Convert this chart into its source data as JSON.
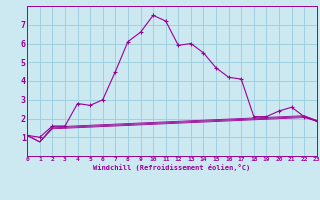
{
  "xlabel": "Windchill (Refroidissement éolien,°C)",
  "background_color": "#cce8f0",
  "grid_color": "#99ccdd",
  "line_color": "#990099",
  "x_values": [
    0,
    1,
    2,
    3,
    4,
    5,
    6,
    7,
    8,
    9,
    10,
    11,
    12,
    13,
    14,
    15,
    16,
    17,
    18,
    19,
    20,
    21,
    22,
    23
  ],
  "line1_y": [
    1.1,
    1.0,
    1.6,
    1.6,
    2.8,
    2.7,
    3.0,
    4.5,
    6.1,
    6.6,
    7.5,
    7.2,
    5.9,
    6.0,
    5.5,
    4.7,
    4.2,
    4.1,
    2.1,
    2.1,
    2.4,
    2.6,
    2.1,
    1.85
  ],
  "line2_y": [
    1.1,
    0.75,
    1.55,
    1.58,
    1.61,
    1.64,
    1.67,
    1.7,
    1.73,
    1.76,
    1.79,
    1.82,
    1.85,
    1.88,
    1.91,
    1.94,
    1.97,
    2.0,
    2.03,
    2.06,
    2.09,
    2.12,
    2.15,
    1.9
  ],
  "line3_y": [
    1.1,
    0.75,
    1.5,
    1.53,
    1.56,
    1.59,
    1.62,
    1.65,
    1.68,
    1.71,
    1.74,
    1.77,
    1.8,
    1.83,
    1.86,
    1.89,
    1.92,
    1.95,
    1.98,
    2.01,
    2.04,
    2.07,
    2.1,
    1.88
  ],
  "line4_y": [
    1.1,
    0.75,
    1.45,
    1.48,
    1.51,
    1.54,
    1.57,
    1.6,
    1.63,
    1.66,
    1.69,
    1.72,
    1.75,
    1.78,
    1.81,
    1.84,
    1.87,
    1.9,
    1.93,
    1.96,
    1.99,
    2.02,
    2.05,
    1.86
  ],
  "ylim": [
    0,
    8
  ],
  "xlim": [
    0,
    23
  ],
  "yticks": [
    1,
    2,
    3,
    4,
    5,
    6,
    7
  ],
  "xticks": [
    0,
    1,
    2,
    3,
    4,
    5,
    6,
    7,
    8,
    9,
    10,
    11,
    12,
    13,
    14,
    15,
    16,
    17,
    18,
    19,
    20,
    21,
    22,
    23
  ]
}
